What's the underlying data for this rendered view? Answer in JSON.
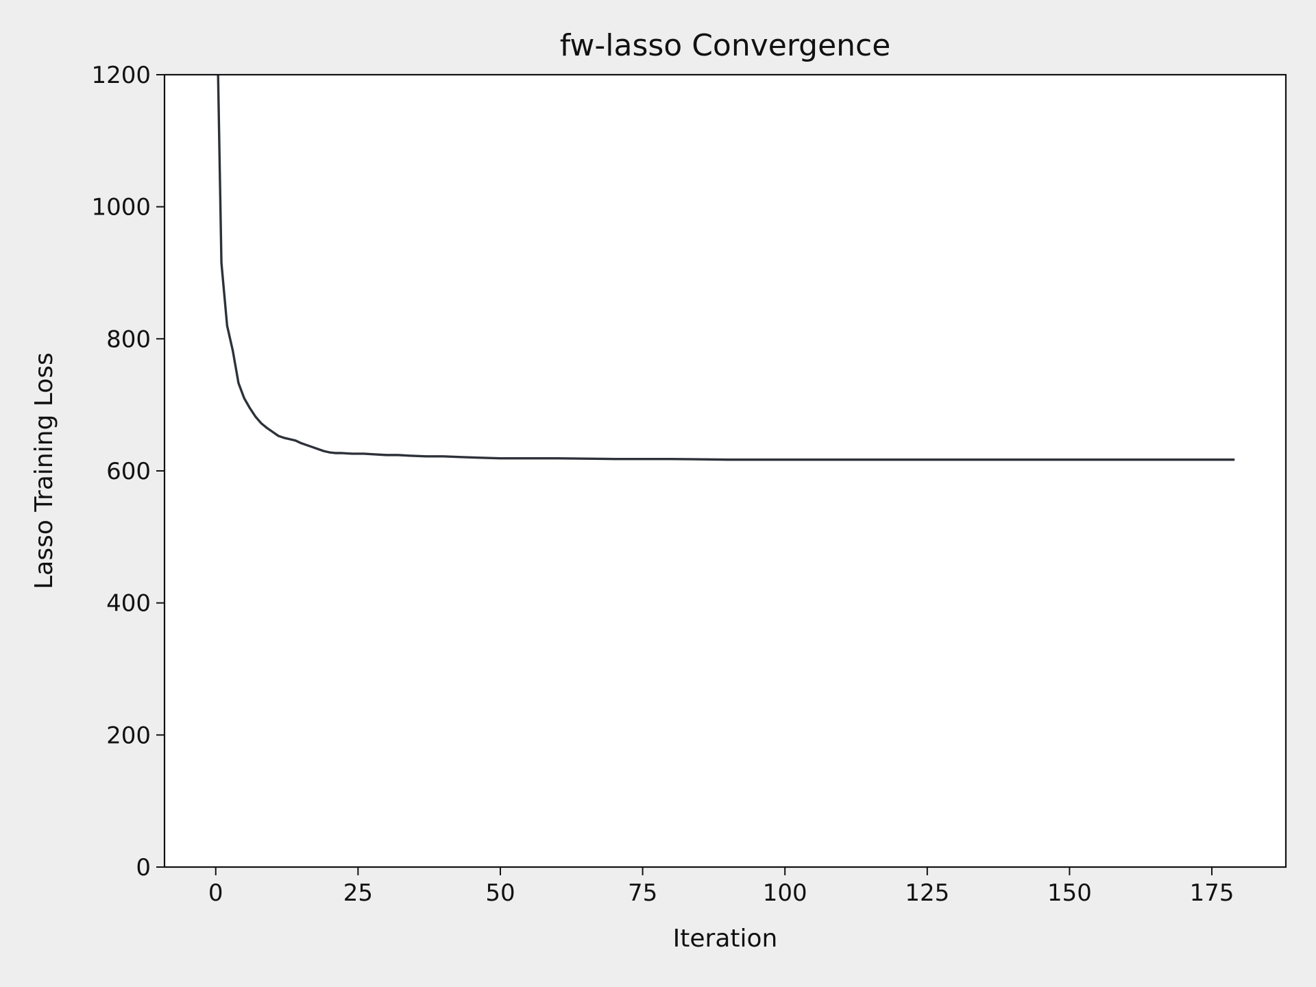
{
  "chart_data": {
    "type": "line",
    "title": "fw-lasso Convergence",
    "xlabel": "Iteration",
    "ylabel": "Lasso Training Loss",
    "xlim": [
      -9,
      188
    ],
    "ylim": [
      0,
      1200
    ],
    "x_ticks": [
      0,
      25,
      50,
      75,
      100,
      125,
      150,
      175
    ],
    "y_ticks": [
      0,
      200,
      400,
      600,
      800,
      1000,
      1200
    ],
    "grid": false,
    "line_color": "#2d3139",
    "series": [
      {
        "x": [
          0,
          1,
          2,
          3,
          4,
          5,
          6,
          7,
          8,
          9,
          10,
          11,
          12,
          13,
          14,
          15,
          16,
          17,
          18,
          19,
          20,
          21,
          22,
          24,
          26,
          28,
          30,
          32,
          34,
          37,
          40,
          43,
          46,
          50,
          55,
          60,
          70,
          80,
          90,
          100,
          110,
          120,
          130,
          140,
          150,
          160,
          170,
          179
        ],
        "y": [
          1400,
          915,
          820,
          782,
          733,
          710,
          695,
          682,
          672,
          665,
          659,
          653,
          650,
          648,
          646,
          642,
          639,
          636,
          633,
          630,
          628,
          627,
          627,
          626,
          626,
          625,
          624,
          624,
          623,
          622,
          622,
          621,
          620,
          619,
          619,
          619,
          618,
          618,
          617,
          617,
          617,
          617,
          617,
          617,
          617,
          617,
          617,
          617
        ]
      }
    ]
  }
}
